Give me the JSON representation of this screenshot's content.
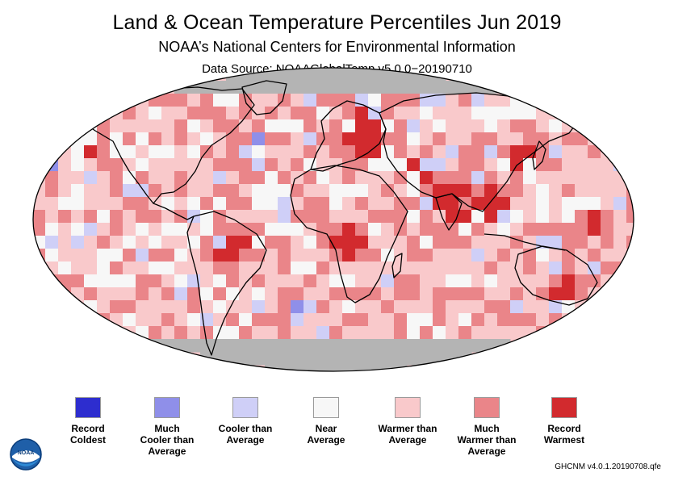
{
  "header": {
    "title": "Land & Ocean Temperature Percentiles Jun 2019",
    "subtitle": "NOAA’s National Centers for Environmental Information",
    "source": "Data Source: NOAAGlobalTemp v5.0.0−20190710"
  },
  "map": {
    "projection": "Robinson",
    "region": "Global",
    "missing_data_color": "#b4b4b4"
  },
  "legend": [
    {
      "label": "Record\nColdest",
      "color": "#2d2dcf"
    },
    {
      "label": "Much\nCooler than\nAverage",
      "color": "#8f8fe9"
    },
    {
      "label": "Cooler than\nAverage",
      "color": "#cfcff7"
    },
    {
      "label": "Near\nAverage",
      "color": "#f7f7f7"
    },
    {
      "label": "Warmer than\nAverage",
      "color": "#f9c9cb"
    },
    {
      "label": "Much\nWarmer than\nAverage",
      "color": "#ea8589"
    },
    {
      "label": "Record\nWarmest",
      "color": "#d22a2e"
    }
  ],
  "logo": {
    "text": "NOAA",
    "icon": "noaa-logo-icon"
  },
  "footer": {
    "dataset_id": "GHCNM v4.0.1.20190708.qfe"
  }
}
